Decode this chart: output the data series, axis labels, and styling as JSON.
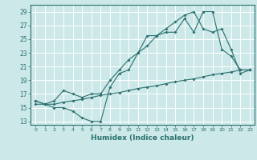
{
  "xlabel": "Humidex (Indice chaleur)",
  "ylabel": "",
  "xlim": [
    -0.5,
    23.5
  ],
  "ylim": [
    12.5,
    30.0
  ],
  "xticks": [
    0,
    1,
    2,
    3,
    4,
    5,
    6,
    7,
    8,
    9,
    10,
    11,
    12,
    13,
    14,
    15,
    16,
    17,
    18,
    19,
    20,
    21,
    22,
    23
  ],
  "yticks": [
    13,
    15,
    17,
    19,
    21,
    23,
    25,
    27,
    29
  ],
  "bg_color": "#cce8e8",
  "grid_color": "#b8d8d8",
  "line_color": "#2a7070",
  "line1_x": [
    0,
    1,
    2,
    3,
    4,
    5,
    6,
    7,
    8,
    9,
    10,
    11,
    12,
    13,
    14,
    15,
    16,
    17,
    18,
    19,
    20,
    21,
    22,
    23
  ],
  "line1_y": [
    16.0,
    15.5,
    15.0,
    15.0,
    14.5,
    13.5,
    13.0,
    13.0,
    18.0,
    20.0,
    20.5,
    23.0,
    25.5,
    25.5,
    26.0,
    26.0,
    28.0,
    26.0,
    29.0,
    29.0,
    23.5,
    22.5,
    20.5,
    20.5
  ],
  "line2_x": [
    0,
    1,
    2,
    3,
    4,
    5,
    6,
    7,
    8,
    9,
    10,
    11,
    12,
    13,
    14,
    15,
    16,
    17,
    18,
    19,
    20,
    21,
    22,
    23
  ],
  "line2_y": [
    16.0,
    15.5,
    16.0,
    17.5,
    17.0,
    16.5,
    17.0,
    17.0,
    19.0,
    20.5,
    22.0,
    23.0,
    24.0,
    25.5,
    26.5,
    27.5,
    28.5,
    29.0,
    26.5,
    26.0,
    26.5,
    23.5,
    20.0,
    20.5
  ],
  "line3_x": [
    0,
    1,
    2,
    3,
    4,
    5,
    6,
    7,
    8,
    9,
    10,
    11,
    12,
    13,
    14,
    15,
    16,
    17,
    18,
    19,
    20,
    21,
    22,
    23
  ],
  "line3_y": [
    15.5,
    15.5,
    15.5,
    15.8,
    16.0,
    16.2,
    16.5,
    16.8,
    17.0,
    17.2,
    17.5,
    17.8,
    18.0,
    18.2,
    18.5,
    18.8,
    19.0,
    19.2,
    19.5,
    19.8,
    20.0,
    20.2,
    20.5,
    20.5
  ]
}
